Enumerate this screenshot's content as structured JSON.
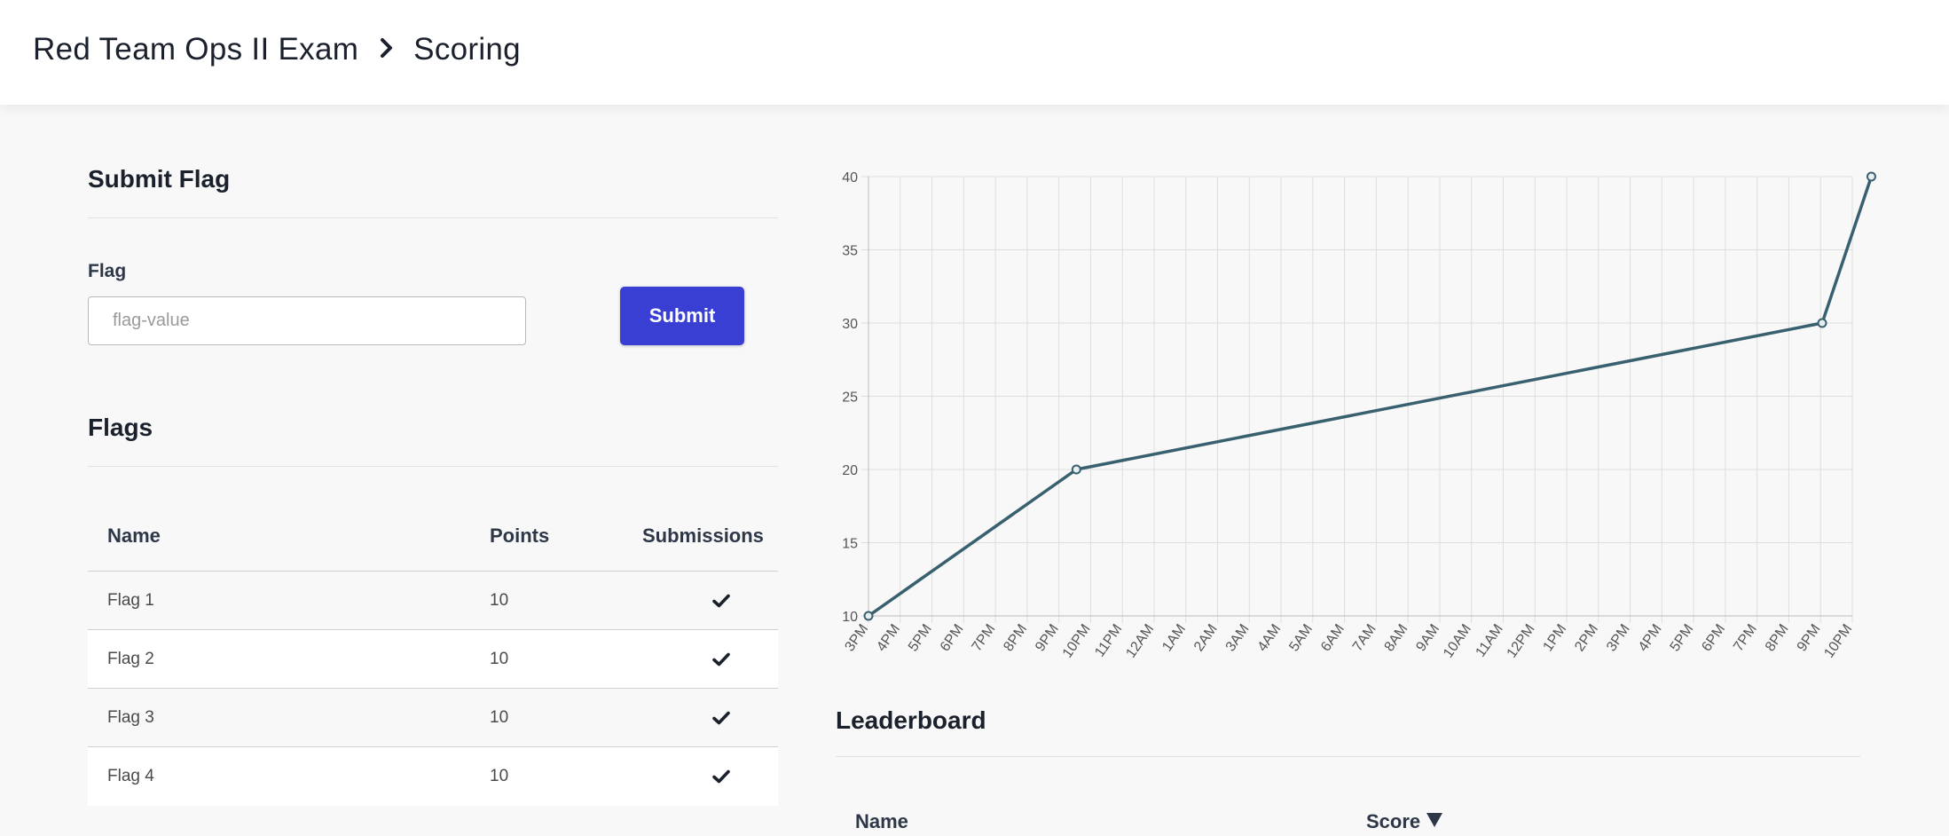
{
  "breadcrumb": {
    "items": [
      "Red Team Ops II Exam",
      "Scoring"
    ]
  },
  "submit_flag": {
    "title": "Submit Flag",
    "field_label": "Flag",
    "placeholder": "flag-value",
    "value": "",
    "button_label": "Submit"
  },
  "flags": {
    "title": "Flags",
    "columns": [
      "Name",
      "Points",
      "Submissions"
    ],
    "rows": [
      {
        "name": "Flag 1",
        "points": "10",
        "submitted": true
      },
      {
        "name": "Flag 2",
        "points": "10",
        "submitted": true
      },
      {
        "name": "Flag 3",
        "points": "10",
        "submitted": true
      },
      {
        "name": "Flag 4",
        "points": "10",
        "submitted": true
      }
    ]
  },
  "chart_data": {
    "type": "line",
    "title": "",
    "xlabel": "",
    "ylabel": "",
    "ylim": [
      10,
      40
    ],
    "yticks": [
      10,
      15,
      20,
      25,
      30,
      35,
      40
    ],
    "x_ticks": [
      "3PM",
      "4PM",
      "5PM",
      "6PM",
      "7PM",
      "8PM",
      "9PM",
      "10PM",
      "11PM",
      "12AM",
      "1AM",
      "2AM",
      "3AM",
      "4AM",
      "5AM",
      "6AM",
      "7AM",
      "8AM",
      "9AM",
      "10AM",
      "11AM",
      "12PM",
      "1PM",
      "2PM",
      "3PM",
      "4PM",
      "5PM",
      "6PM",
      "7PM",
      "8PM",
      "9PM",
      "10PM"
    ],
    "grid": true,
    "line_color": "#38606f",
    "series": [
      {
        "x_hours_from_3pm": [
          0,
          6.55,
          30.05,
          31.6
        ],
        "x_labels": [
          "3PM",
          "9PM",
          "9PM",
          "10PM"
        ],
        "y": [
          10,
          20,
          30,
          40
        ]
      }
    ]
  },
  "leaderboard": {
    "title": "Leaderboard",
    "columns": [
      "Name",
      "Score"
    ],
    "sort_icon": "caret-down-icon"
  },
  "colors": {
    "accent": "#3a3fd4",
    "line": "#38606f"
  }
}
